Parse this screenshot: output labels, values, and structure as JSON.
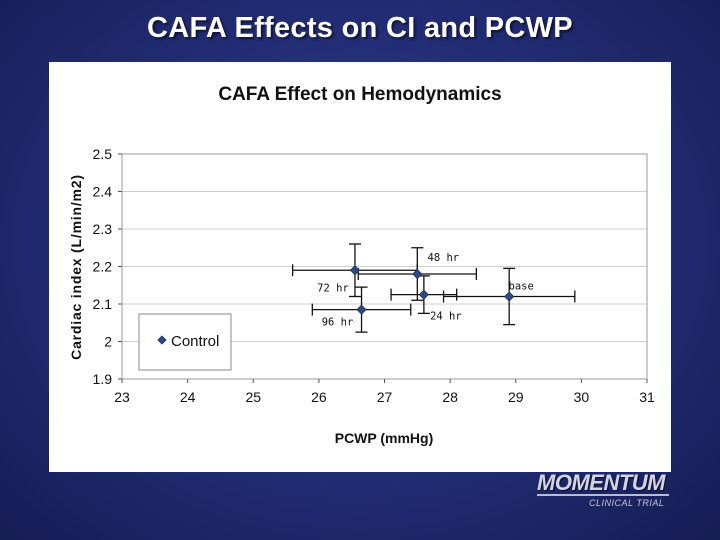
{
  "slide": {
    "title": "CAFA Effects on CI and PCWP"
  },
  "logo": {
    "main": "MOMENTUM",
    "sub": "CLINICAL TRIAL"
  },
  "colors": {
    "background": "#242f79",
    "marker": "#2e4a86",
    "error_bar": "#000000",
    "grid": "#c8c8c8"
  },
  "chart_data": {
    "type": "scatter",
    "title": "CAFA Effect on Hemodynamics",
    "xlabel": "PCWP (mmHg)",
    "ylabel": "Cardiac index (L/min/m2)",
    "xlim": [
      23,
      31
    ],
    "ylim": [
      1.9,
      2.5
    ],
    "xticks": [
      23,
      24,
      25,
      26,
      27,
      28,
      29,
      30,
      31
    ],
    "yticks": [
      1.9,
      2,
      2.1,
      2.2,
      2.3,
      2.4,
      2.5
    ],
    "grid": "horizontal",
    "legend": {
      "position": "left",
      "entries": [
        "Control"
      ]
    },
    "series": [
      {
        "name": "Control",
        "points": [
          {
            "label": "base",
            "x": 28.9,
            "y": 2.12,
            "xerr": 1.0,
            "yerr": 0.075
          },
          {
            "label": "24 hr",
            "x": 27.6,
            "y": 2.125,
            "xerr": 0.5,
            "yerr": 0.05
          },
          {
            "label": "48 hr",
            "x": 27.5,
            "y": 2.18,
            "xerr": 0.9,
            "yerr": 0.07
          },
          {
            "label": "72 hr",
            "x": 26.55,
            "y": 2.19,
            "xerr": 0.95,
            "yerr": 0.07
          },
          {
            "label": "96 hr",
            "x": 26.65,
            "y": 2.085,
            "xerr": 0.75,
            "yerr": 0.06
          }
        ]
      }
    ]
  }
}
